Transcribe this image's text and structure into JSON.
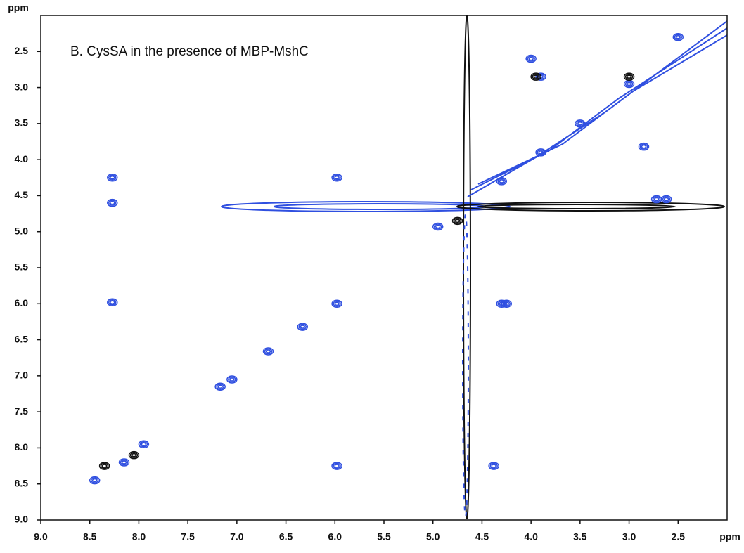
{
  "chart_data": {
    "type": "scatter",
    "annotation": "B. CysSA in the presence of MBP-MshC",
    "x_label": "ppm",
    "y_label": "ppm",
    "xlim": [
      9.0,
      2.0
    ],
    "ylim": [
      2.0,
      9.0
    ],
    "xticks": [
      {
        "value": 9,
        "label": "9.0"
      },
      8.5,
      {
        "value": 8,
        "label": "8.0"
      },
      7.5,
      {
        "value": 7,
        "label": "7.0"
      },
      6.5,
      {
        "value": 6,
        "label": "6.0"
      },
      5.5,
      {
        "value": 5,
        "label": "5.0"
      },
      4.5,
      {
        "value": 4,
        "label": "4.0"
      },
      3.5,
      {
        "value": 3,
        "label": "3.0"
      },
      2.5
    ],
    "yticks": [
      2.5,
      {
        "value": 3,
        "label": "3.0"
      },
      3.5,
      {
        "value": 4,
        "label": "4.0"
      },
      4.5,
      {
        "value": 5,
        "label": "5.0"
      },
      5.5,
      {
        "value": 6,
        "label": "6.0"
      },
      6.5,
      {
        "value": 7,
        "label": "7.0"
      },
      7.5,
      {
        "value": 8,
        "label": "8.0"
      },
      8.5,
      {
        "value": 9,
        "label": "9.0"
      }
    ],
    "series": [
      {
        "color": "#2f4fe0",
        "x": [
          8.27,
          8.27,
          8.27,
          5.98,
          5.98,
          6.33,
          6.68,
          7.05,
          7.17,
          7.95,
          8.15,
          8.45,
          5.98,
          4.38,
          4.0,
          3.9,
          2.72,
          2.62,
          4.95,
          4.3,
          3.0,
          2.5,
          3.5,
          4.3,
          3.9,
          2.85,
          4.25
        ],
        "y": [
          4.25,
          4.6,
          5.98,
          4.25,
          6.0,
          6.32,
          6.66,
          7.05,
          7.15,
          7.95,
          8.2,
          8.45,
          8.25,
          8.25,
          2.6,
          2.85,
          4.55,
          4.55,
          4.93,
          6.0,
          2.95,
          2.3,
          3.5,
          4.3,
          3.9,
          3.82,
          6.0
        ]
      },
      {
        "color": "#111111",
        "x": [
          3.95,
          3.0,
          8.35,
          8.05,
          4.75
        ],
        "y": [
          2.85,
          2.85,
          8.25,
          8.1,
          4.85
        ]
      }
    ]
  }
}
